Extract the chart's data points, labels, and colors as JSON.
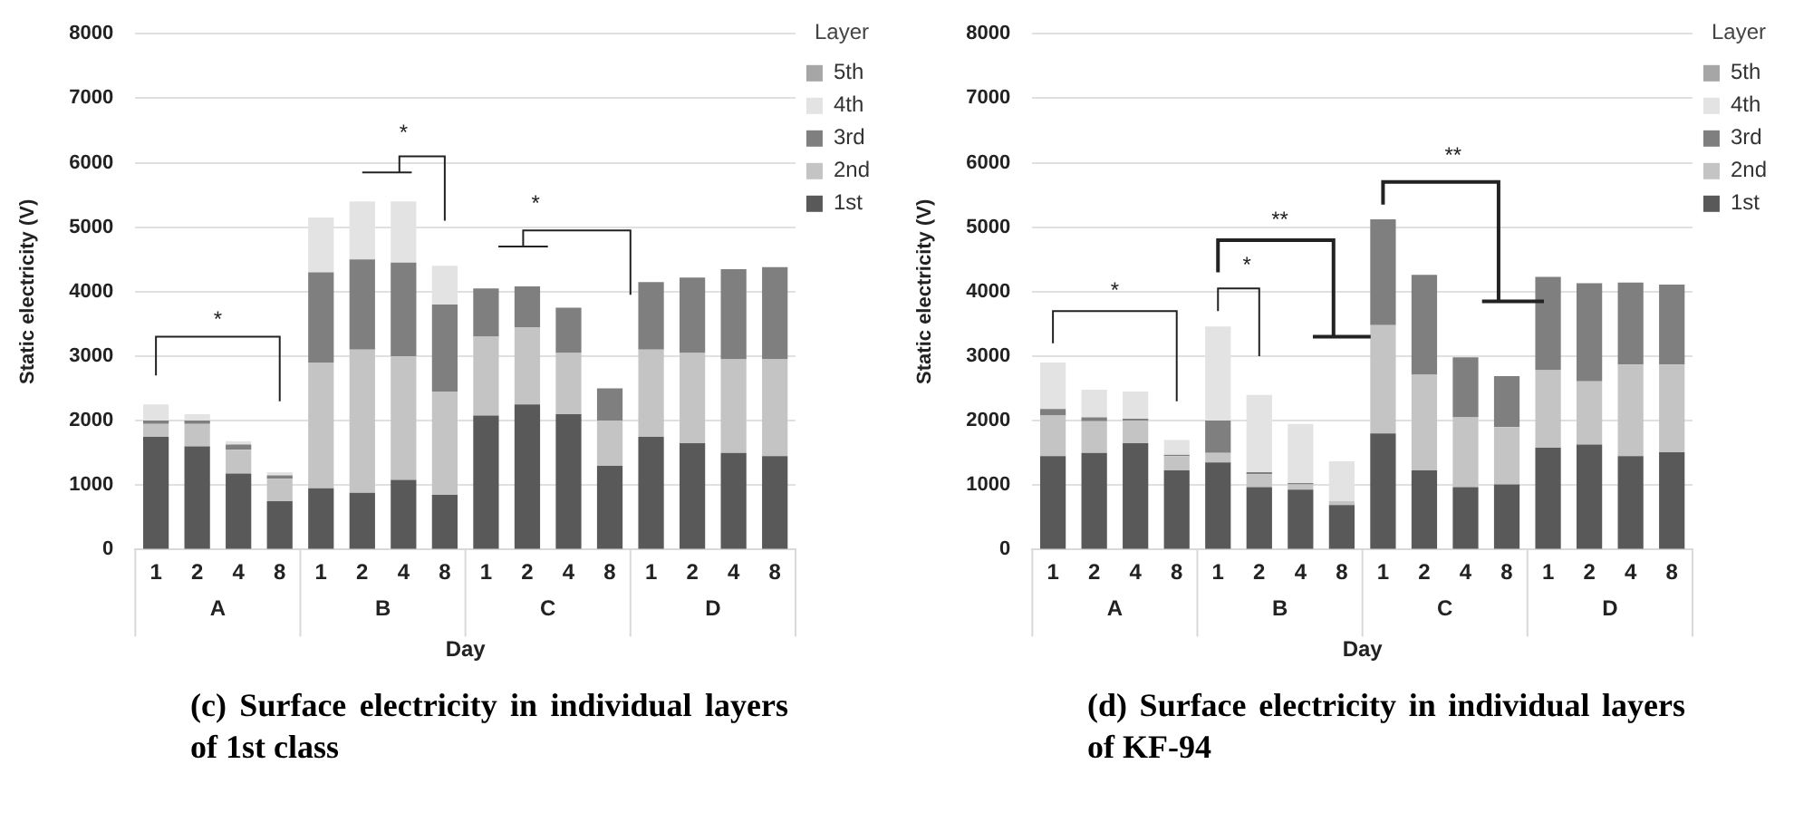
{
  "chart_data": [
    {
      "type": "bar",
      "stacked": true,
      "title": "(c) Surface electricity in individual layers of 1st class",
      "xlabel": "Day",
      "ylabel": "Static electricity (V)",
      "legend_title": "Layer",
      "legend": "top right",
      "grid": "y",
      "categories": [
        "1",
        "2",
        "4",
        "8",
        "1",
        "2",
        "4",
        "8",
        "1",
        "2",
        "4",
        "8",
        "1",
        "2",
        "4",
        "8"
      ],
      "ylim": [
        0,
        8000
      ],
      "yticks": [
        0,
        1000,
        2000,
        3000,
        4000,
        5000,
        6000,
        7000,
        8000
      ],
      "series": [
        {
          "name": "1st",
          "color": "#595959",
          "values": [
            1750,
            1600,
            1180,
            750,
            950,
            880,
            1080,
            850,
            2080,
            2250,
            2100,
            1300,
            1750,
            1650,
            1500,
            1450
          ]
        },
        {
          "name": "2nd",
          "color": "#c4c4c4",
          "values": [
            200,
            350,
            370,
            350,
            1950,
            2220,
            1920,
            1600,
            1220,
            1200,
            950,
            700,
            1350,
            1400,
            1450,
            1500
          ]
        },
        {
          "name": "3rd",
          "color": "#7f7f7f",
          "values": [
            50,
            50,
            80,
            50,
            1400,
            1400,
            1450,
            1350,
            750,
            630,
            700,
            500,
            1050,
            1170,
            1400,
            1430
          ]
        },
        {
          "name": "4th",
          "color": "#e3e3e3",
          "values": [
            250,
            100,
            50,
            50,
            850,
            900,
            950,
            600,
            0,
            0,
            0,
            0,
            0,
            0,
            0,
            0
          ]
        },
        {
          "name": "5th",
          "color": "#a6a6a6",
          "values": [
            0,
            0,
            0,
            0,
            0,
            0,
            0,
            0,
            0,
            0,
            0,
            0,
            0,
            0,
            0,
            0
          ]
        }
      ],
      "annotations": [
        "A",
        "B",
        "C",
        "D",
        "*",
        "*",
        "*"
      ]
    },
    {
      "type": "bar",
      "stacked": true,
      "title": "(d) Surface electricity in individual layers of KF-94",
      "xlabel": "Day",
      "ylabel": "Static electricity (V)",
      "legend_title": "Layer",
      "legend": "top right",
      "grid": "y",
      "categories": [
        "1",
        "2",
        "4",
        "8",
        "1",
        "2",
        "4",
        "8",
        "1",
        "2",
        "4",
        "8",
        "1",
        "2",
        "4",
        "8"
      ],
      "ylim": [
        0,
        8000
      ],
      "yticks": [
        0,
        1000,
        2000,
        3000,
        4000,
        5000,
        6000,
        7000,
        8000
      ],
      "series": [
        {
          "name": "1st",
          "color": "#595959",
          "values": [
            1450,
            1500,
            1650,
            1230,
            1350,
            970,
            930,
            690,
            1800,
            1230,
            970,
            1010,
            1580,
            1630,
            1450,
            1510
          ]
        },
        {
          "name": "2nd",
          "color": "#c4c4c4",
          "values": [
            630,
            490,
            350,
            220,
            150,
            200,
            80,
            60,
            1680,
            1480,
            1080,
            890,
            1200,
            980,
            1420,
            1360
          ]
        },
        {
          "name": "3rd",
          "color": "#7f7f7f",
          "values": [
            100,
            60,
            30,
            20,
            500,
            30,
            20,
            0,
            1640,
            1550,
            930,
            790,
            1450,
            1520,
            1270,
            1240
          ]
        },
        {
          "name": "4th",
          "color": "#e3e3e3",
          "values": [
            720,
            430,
            420,
            230,
            1460,
            1200,
            920,
            620,
            0,
            0,
            0,
            0,
            0,
            0,
            0,
            0
          ]
        },
        {
          "name": "5th",
          "color": "#a6a6a6",
          "values": [
            0,
            0,
            0,
            0,
            0,
            0,
            0,
            0,
            0,
            0,
            0,
            0,
            0,
            0,
            0,
            0
          ]
        }
      ],
      "annotations": [
        "A",
        "B",
        "C",
        "D",
        "*",
        "*",
        "**",
        "**"
      ]
    }
  ]
}
